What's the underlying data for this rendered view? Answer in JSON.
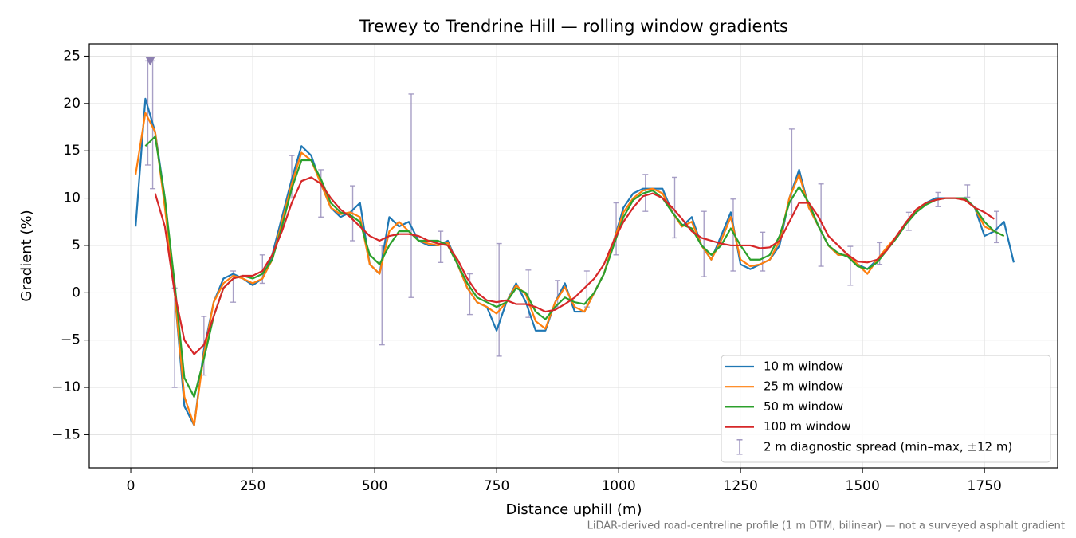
{
  "chart_data": {
    "type": "line",
    "title": "Trewey to Trendrine Hill — rolling window gradients",
    "xlabel": "Distance uphill (m)",
    "ylabel": "Gradient (%)",
    "footnote": "LiDAR-derived road-centreline profile (1 m DTM, bilinear) — not a surveyed asphalt gradient",
    "xlim": [
      -85,
      1900
    ],
    "ylim": [
      -18.5,
      26.3
    ],
    "xticks": [
      0,
      250,
      500,
      750,
      1000,
      1250,
      1500,
      1750
    ],
    "yticks": [
      {
        "value": -15,
        "label": "−15"
      },
      {
        "value": -10,
        "label": "−10"
      },
      {
        "value": -5,
        "label": "−5"
      },
      0,
      5,
      10,
      15,
      20,
      25
    ],
    "grid": true,
    "legend": "lower right",
    "x": [
      10,
      30,
      50,
      70,
      90,
      110,
      130,
      150,
      170,
      190,
      210,
      230,
      250,
      270,
      290,
      310,
      330,
      350,
      370,
      390,
      410,
      430,
      450,
      470,
      490,
      510,
      530,
      550,
      570,
      590,
      610,
      630,
      650,
      670,
      690,
      710,
      730,
      750,
      770,
      790,
      810,
      830,
      850,
      870,
      890,
      910,
      930,
      950,
      970,
      990,
      1010,
      1030,
      1050,
      1070,
      1090,
      1110,
      1130,
      1150,
      1170,
      1190,
      1210,
      1230,
      1250,
      1270,
      1290,
      1310,
      1330,
      1350,
      1370,
      1390,
      1410,
      1430,
      1450,
      1470,
      1490,
      1510,
      1530,
      1550,
      1570,
      1590,
      1610,
      1630,
      1650,
      1670,
      1690,
      1710,
      1730,
      1750,
      1770,
      1790,
      1810
    ],
    "series": [
      {
        "name": "10 m window",
        "color": "#1f77b4",
        "values": [
          7,
          20.5,
          17,
          10,
          0,
          -12,
          -14,
          -6,
          -1,
          1.5,
          2,
          1.5,
          0.8,
          1.5,
          4,
          8,
          12,
          15.5,
          14.5,
          11.5,
          9,
          8,
          8.5,
          9.5,
          3,
          2,
          8,
          7,
          7.5,
          5.5,
          5,
          5,
          5.5,
          3,
          0.5,
          -1,
          -1.5,
          -4,
          -1,
          1,
          -1,
          -4,
          -4,
          -1,
          1,
          -2,
          -2,
          0,
          2,
          5.5,
          9,
          10.5,
          11,
          11,
          11,
          8.5,
          7,
          8,
          5,
          3.5,
          6,
          8.5,
          3,
          2.5,
          3,
          3.5,
          5,
          10,
          13,
          9,
          7,
          5,
          4,
          4,
          3,
          2.5,
          3.5,
          4.5,
          6,
          7.5,
          8.5,
          9.5,
          10,
          10,
          10,
          10,
          9,
          6,
          6.5,
          7.5,
          3.2
        ]
      },
      {
        "name": "25 m window",
        "color": "#ff7f0e",
        "values": [
          12.5,
          19,
          17,
          9,
          0,
          -11,
          -14,
          -6.5,
          -1,
          1,
          1.8,
          1.5,
          1,
          1.5,
          3.5,
          7.5,
          11.5,
          14.8,
          14,
          11.5,
          9,
          8.3,
          8.5,
          8,
          3,
          2,
          6.5,
          7.5,
          6.5,
          5.5,
          5.2,
          5,
          5.3,
          3,
          0.5,
          -1,
          -1.5,
          -2.2,
          -1,
          0.8,
          -0.2,
          -3,
          -3.8,
          -1,
          0.6,
          -1.5,
          -2,
          0,
          2,
          5.5,
          8.5,
          10,
          10.8,
          11,
          10.5,
          8.5,
          7,
          7.5,
          5,
          3.5,
          5.5,
          8,
          3.5,
          2.8,
          3,
          3.5,
          5.5,
          10,
          12.5,
          9,
          7,
          5,
          4,
          4,
          3,
          2,
          3.5,
          4.8,
          6,
          7.5,
          8.5,
          9.5,
          9.8,
          10,
          10,
          9.8,
          9,
          7,
          6.5,
          6,
          null
        ]
      },
      {
        "name": "50 m window",
        "color": "#2ca02c",
        "values": [
          null,
          15.5,
          16.5,
          10,
          1,
          -9,
          -11,
          -7,
          -2.5,
          0.5,
          1.5,
          1.8,
          1.5,
          2,
          3.5,
          7,
          11,
          14,
          14,
          12,
          9.5,
          8.5,
          8.2,
          7.5,
          4,
          3,
          5,
          6.5,
          6.5,
          5.5,
          5.5,
          5.5,
          5,
          3,
          1,
          -0.5,
          -1,
          -1.5,
          -1,
          0.5,
          0,
          -2,
          -2.8,
          -1.5,
          -0.5,
          -1,
          -1.2,
          0,
          2,
          5,
          8,
          9.8,
          10.5,
          10.8,
          10,
          8.5,
          7.2,
          6.8,
          5,
          4,
          5,
          6.8,
          5,
          3.5,
          3.5,
          4,
          6,
          9.5,
          11.2,
          9.5,
          7,
          5,
          4.2,
          3.8,
          2.8,
          2.5,
          3.2,
          4.5,
          5.8,
          7.3,
          8.5,
          9.3,
          9.8,
          10,
          10,
          10,
          9,
          7.5,
          6.5,
          6,
          null
        ]
      },
      {
        "name": "100 m window",
        "color": "#d62728",
        "values": [
          null,
          null,
          10.5,
          7,
          0,
          -5,
          -6.5,
          -5.5,
          -2.5,
          0.5,
          1.5,
          1.8,
          1.8,
          2.3,
          4,
          6.5,
          9.5,
          11.8,
          12.2,
          11.5,
          10,
          8.8,
          8,
          7,
          6,
          5.5,
          6,
          6.2,
          6.2,
          6,
          5.5,
          5.2,
          5,
          3.5,
          1.5,
          0,
          -0.8,
          -1,
          -0.8,
          -1.2,
          -1.2,
          -1.5,
          -2,
          -1.8,
          -1.2,
          -0.5,
          0.5,
          1.5,
          3,
          5.5,
          7.5,
          9,
          10.2,
          10.5,
          10,
          9,
          7.8,
          6.5,
          5.8,
          5.5,
          5.2,
          5,
          5,
          5,
          4.7,
          4.8,
          5.5,
          7.5,
          9.5,
          9.5,
          8,
          6,
          5,
          4,
          3.3,
          3.2,
          3.5,
          4.5,
          6,
          7.5,
          8.8,
          9.5,
          9.8,
          10,
          10,
          9.8,
          9,
          8.5,
          7.8,
          null,
          null
        ]
      }
    ],
    "error_bars": {
      "name": "2 m diagnostic spread (min–max, ±12 m)",
      "color": "#9a90bd",
      "x": [
        35,
        45,
        90,
        150,
        210,
        270,
        330,
        390,
        455,
        515,
        575,
        635,
        695,
        755,
        815,
        875,
        935,
        995,
        1055,
        1115,
        1175,
        1235,
        1295,
        1355,
        1415,
        1475,
        1535,
        1595,
        1655,
        1715,
        1775
      ],
      "low": [
        13.5,
        11,
        -10,
        -8.7,
        -1,
        1,
        10,
        8,
        5.5,
        -5.5,
        -0.5,
        3.2,
        -2.3,
        -6.7,
        -2.6,
        -1.5,
        -1.5,
        4,
        8.6,
        5.8,
        1.7,
        2.3,
        2.3,
        8.3,
        2.8,
        0.8,
        3,
        6.6,
        9.1,
        10.1,
        5.3
      ],
      "high": [
        24.5,
        24.5,
        0.5,
        -2.5,
        2.3,
        4,
        14.5,
        13,
        11.3,
        5,
        21,
        6.5,
        2,
        5.2,
        2.4,
        1.3,
        2.3,
        9.5,
        12.5,
        12.2,
        8.6,
        9.9,
        6.4,
        17.3,
        11.5,
        4.9,
        5.3,
        8.5,
        10.6,
        11.4,
        8.6
      ]
    },
    "marker": {
      "x": 40,
      "y": 24.5,
      "color": "#8c7fb0"
    }
  }
}
